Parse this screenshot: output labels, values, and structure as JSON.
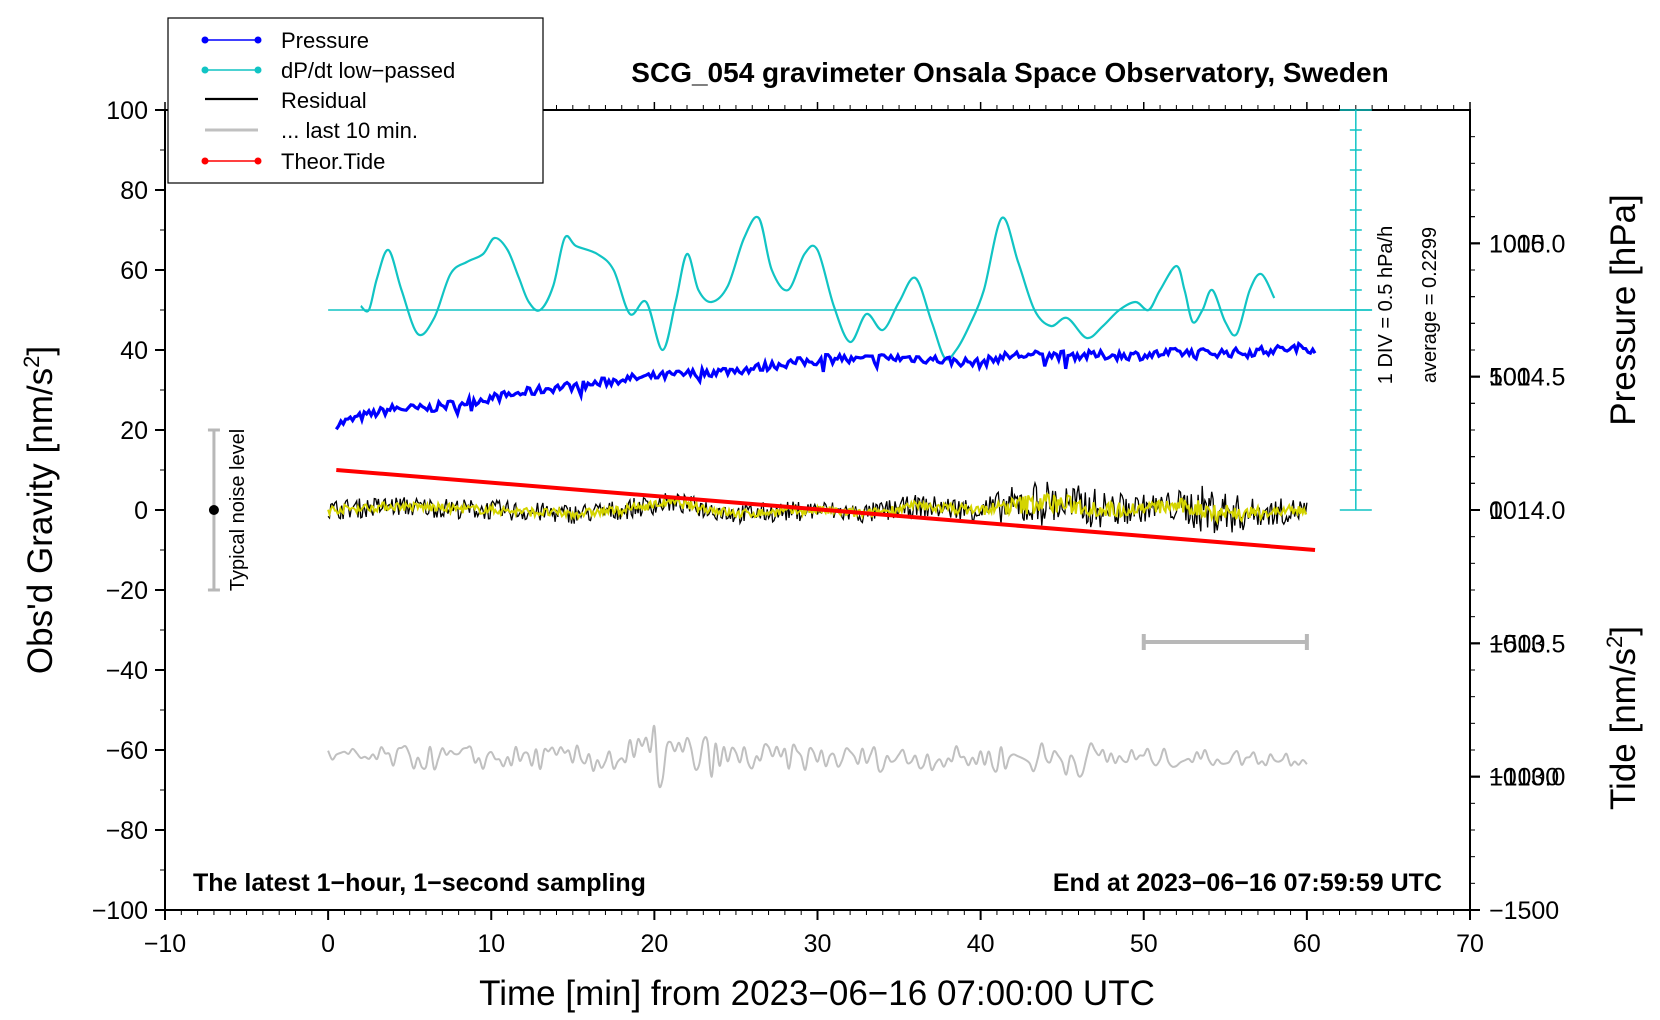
{
  "chart_data": {
    "type": "line",
    "title": "SCG_054 gravimeter Onsala Space Observatory, Sweden",
    "xlabel": "Time [min] from 2023−06−16 07:00:00 UTC",
    "ylabel_left": "Obs'd Gravity [nm/s",
    "ylabel_right_top": "Pressure [hPa]",
    "ylabel_right_bottom": "Tide [nm/s",
    "superscript": "2",
    "xlim": [
      -10,
      70
    ],
    "ylim_left": [
      -100,
      100
    ],
    "pressure_ylim": [
      1012.5,
      1015.5
    ],
    "tide_ylim": [
      -1500,
      1500
    ],
    "x_ticks": [
      "−10",
      "0",
      "10",
      "20",
      "30",
      "40",
      "50",
      "60",
      "70"
    ],
    "y_ticks_left": [
      "100",
      "80",
      "60",
      "40",
      "20",
      "0",
      "−20",
      "−40",
      "−60",
      "−80",
      "−100"
    ],
    "pressure_ticks": [
      "1015.0",
      "1014.5",
      "1014.0",
      "1013.5",
      "1013.0"
    ],
    "tide_ticks": [
      "1000",
      "500",
      "0",
      "−500",
      "−1000",
      "−1500"
    ],
    "legend": [
      "Pressure",
      "dP/dt low−passed",
      "Residual",
      "... last 10 min.",
      "Theor.Tide"
    ],
    "annotations": {
      "noise": "Typical noise level",
      "left_note": "The latest 1−hour, 1−second sampling",
      "right_note": "End at 2023−06−16 07:59:59 UTC",
      "div_label": "1 DIV = 0.5 hPa/h",
      "average_label": "average = 0.2299"
    },
    "noise_bar": {
      "x": -7,
      "y_center": 0,
      "half_range": 20
    },
    "ten_min_bar": {
      "x_start": 50,
      "x_end": 60,
      "y": -33
    },
    "series": [
      {
        "name": "Pressure",
        "color": "#0000ff",
        "axis": "pressure_hPa",
        "x": [
          0.5,
          2,
          4,
          6,
          8,
          10,
          12,
          14,
          16,
          18,
          20,
          22,
          24,
          26,
          28,
          30,
          31,
          32,
          34,
          36,
          38,
          40,
          41,
          42,
          44,
          46,
          48,
          50,
          52,
          54,
          56,
          58,
          60,
          60.5
        ],
        "values": [
          1014.32,
          1014.35,
          1014.38,
          1014.38,
          1014.4,
          1014.42,
          1014.44,
          1014.46,
          1014.47,
          1014.49,
          1014.5,
          1014.51,
          1014.52,
          1014.53,
          1014.55,
          1014.56,
          1014.58,
          1014.56,
          1014.57,
          1014.57,
          1014.56,
          1014.55,
          1014.57,
          1014.58,
          1014.58,
          1014.58,
          1014.58,
          1014.58,
          1014.59,
          1014.59,
          1014.59,
          1014.6,
          1014.61,
          1014.6
        ]
      },
      {
        "name": "dP/dt low−passed",
        "color": "#11c4c4",
        "axis": "gravity",
        "baseline": 50,
        "x": [
          2,
          2.5,
          3,
          3.7,
          4.5,
          5.5,
          6.5,
          7.5,
          8.5,
          9.5,
          10.2,
          11,
          11.7,
          12.3,
          13,
          13.8,
          14.5,
          15.2,
          16.5,
          17.5,
          18.5,
          19.5,
          20.5,
          21.3,
          22,
          22.7,
          23.5,
          24.5,
          25.5,
          26.4,
          27.2,
          28.2,
          29.2,
          30,
          31,
          32,
          33,
          34,
          35,
          36,
          37,
          37.8,
          38.5,
          39.3,
          40.2,
          41.3,
          42.3,
          43.3,
          44.3,
          45.3,
          46.5,
          47.5,
          48.5,
          49.5,
          50.3,
          51,
          52,
          52.5,
          53,
          53.6,
          54.2,
          55,
          55.7,
          56.5,
          57.2,
          58
        ],
        "values": [
          51,
          50,
          58,
          65,
          55,
          44,
          48,
          59,
          62,
          64,
          68,
          65,
          58,
          52,
          50,
          56,
          68,
          66,
          64,
          60,
          49,
          52,
          40,
          52,
          64,
          55,
          52,
          56,
          68,
          73,
          60,
          55,
          64,
          65,
          51,
          42,
          49,
          45,
          52,
          58,
          47,
          38,
          40,
          46,
          55,
          73,
          62,
          50,
          46,
          48,
          43,
          46,
          50,
          52,
          50,
          55,
          61,
          55,
          47,
          50,
          55,
          47,
          44,
          55,
          59,
          53
        ]
      },
      {
        "name": "Residual",
        "color": "#000000",
        "axis": "gravity",
        "x_start": 0,
        "x_end": 60,
        "samples": 720,
        "noise_envelope": {
          "x": [
            0,
            10,
            20,
            30,
            40,
            43,
            47,
            50,
            52,
            54,
            57,
            60
          ],
          "amplitude": [
            2.5,
            2.5,
            2.5,
            2.5,
            3,
            6,
            5,
            3.5,
            4,
            6.5,
            3.5,
            3
          ]
        },
        "smooth_profile": {
          "x": [
            0,
            4,
            10,
            15,
            18,
            21,
            25,
            30,
            33,
            36,
            40,
            44,
            48,
            52,
            56,
            60
          ],
          "values": [
            0,
            1,
            0,
            -1,
            0,
            2,
            -1,
            0,
            -1,
            1,
            0,
            2,
            0,
            1,
            -1,
            0
          ]
        }
      },
      {
        "name": "... last 10 min.",
        "color": "#c0c0c0",
        "axis": "gravity",
        "x_start": 0,
        "x_end": 60,
        "offset": -62,
        "samples": 240,
        "noise_envelope": {
          "x": [
            0,
            5,
            10,
            15,
            18,
            20,
            22,
            24,
            30,
            40,
            43,
            45,
            47,
            50,
            55,
            60
          ],
          "amplitude": [
            2.5,
            3,
            3,
            3,
            5,
            8,
            7,
            4,
            3,
            3,
            4,
            5,
            4,
            2.5,
            2,
            2
          ]
        }
      },
      {
        "name": "Theor.Tide",
        "color": "#ff0000",
        "axis": "tide",
        "x": [
          0.5,
          60.5
        ],
        "values": [
          150,
          -150
        ]
      }
    ]
  }
}
